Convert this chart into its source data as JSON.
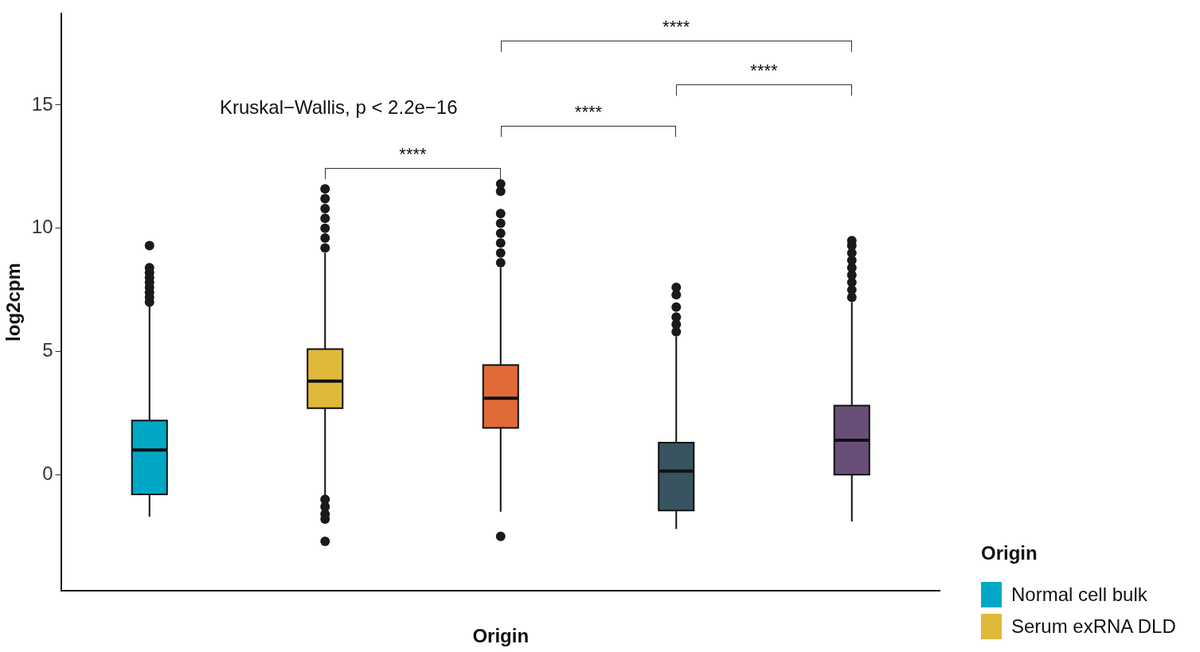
{
  "chart_data": {
    "type": "box",
    "xlabel": "Origin",
    "ylabel": "log2cpm",
    "legend_title": "Origin",
    "legend": "bottom right",
    "grid": false,
    "categories": [
      null,
      null,
      null,
      null,
      null
    ],
    "ylim": [
      -4.7,
      18.7
    ],
    "yticks": [
      0,
      5,
      10,
      15
    ],
    "annotations": [
      "Kruskal−Wallis, p < 2.2e−16",
      "****",
      "****",
      "****",
      "****"
    ],
    "series": [
      {
        "name": "Normal cell bulk",
        "color": "#00a8c6",
        "boxes": [
          {
            "low": -1.7,
            "q1": -0.8,
            "median": 1.0,
            "q3": 2.2,
            "high": 6.9,
            "outliers": [
              7.0,
              7.2,
              7.4,
              7.6,
              7.8,
              8.0,
              8.2,
              8.4,
              9.3
            ]
          },
          null,
          null,
          null,
          null
        ]
      },
      {
        "name": "Serum exRNA DLD",
        "color": "#dfb93a",
        "boxes": [
          null,
          {
            "low": -0.9,
            "q1": 2.7,
            "median": 3.8,
            "q3": 5.1,
            "high": 9.0,
            "outliers": [
              9.2,
              9.6,
              10.0,
              10.4,
              10.8,
              11.2,
              11.6,
              -1.0,
              -1.3,
              -1.6,
              -1.8,
              -2.7
            ]
          },
          null,
          null,
          null
        ]
      },
      {
        "color": "#e06b38",
        "boxes": [
          null,
          null,
          {
            "low": -1.5,
            "q1": 1.9,
            "median": 3.1,
            "q3": 4.45,
            "high": 8.4,
            "outliers": [
              8.6,
              9.0,
              9.4,
              9.8,
              10.2,
              10.6,
              11.5,
              11.8,
              -2.5
            ]
          },
          null,
          null
        ]
      },
      {
        "color": "#37535f",
        "boxes": [
          null,
          null,
          null,
          {
            "low": -2.2,
            "q1": -1.45,
            "median": 0.15,
            "q3": 1.3,
            "high": 5.6,
            "outliers": [
              5.8,
              6.1,
              6.4,
              6.8,
              7.3,
              7.6
            ]
          },
          null
        ]
      },
      {
        "color": "#684f78",
        "boxes": [
          null,
          null,
          null,
          null,
          {
            "low": -1.9,
            "q1": 0.0,
            "median": 1.4,
            "q3": 2.8,
            "high": 7.0,
            "outliers": [
              7.2,
              7.5,
              7.8,
              8.1,
              8.4,
              8.7,
              9.0,
              9.3,
              9.5
            ]
          }
        ]
      }
    ]
  }
}
